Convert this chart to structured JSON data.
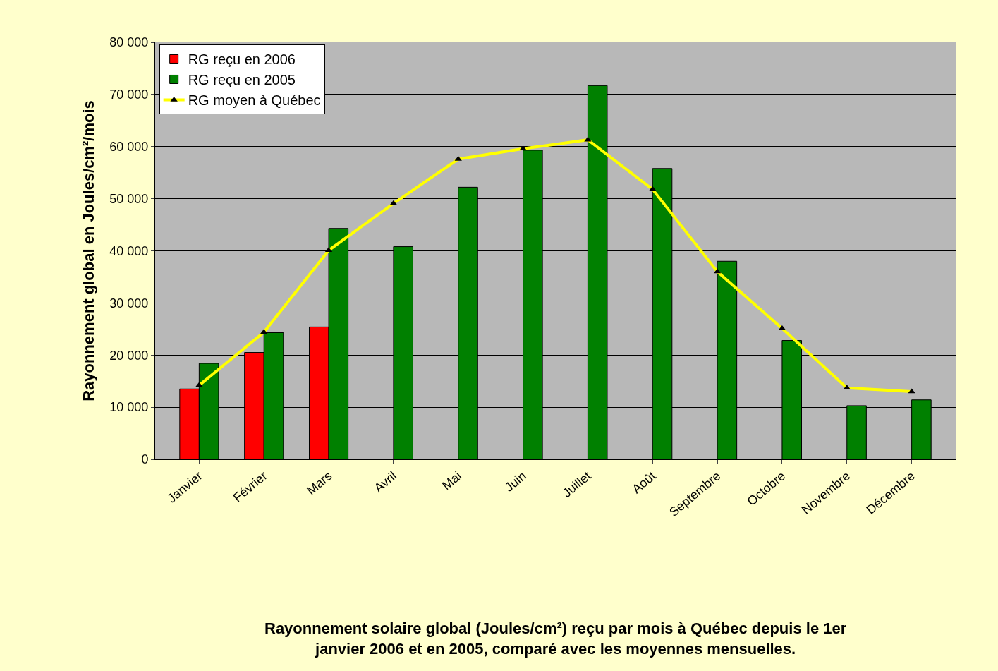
{
  "chart_data": {
    "type": "bar",
    "categories": [
      "Janvier",
      "Février",
      "Mars",
      "Avril",
      "Mai",
      "Juin",
      "Juillet",
      "Août",
      "Septembre",
      "Octobre",
      "Novembre",
      "Décembre"
    ],
    "series": [
      {
        "name": "RG reçu en 2006",
        "color": "#ff0000",
        "values": [
          13500,
          20500,
          25400,
          null,
          null,
          null,
          null,
          null,
          null,
          null,
          null,
          null
        ]
      },
      {
        "name": "RG reçu en 2005",
        "color": "#008000",
        "values": [
          18400,
          24300,
          44300,
          40800,
          52200,
          59300,
          71700,
          55800,
          38000,
          22800,
          10300,
          11400
        ]
      },
      {
        "name": "RG moyen à Québec",
        "type": "line",
        "color": "#ffff00",
        "marker": "triangle",
        "values": [
          14200,
          24400,
          40100,
          49100,
          57600,
          59600,
          61300,
          51800,
          36000,
          25100,
          13700,
          13000
        ]
      }
    ],
    "ylabel": "Rayonnement global en Joules/cm²/mois",
    "ylim": [
      0,
      80000
    ],
    "yticks": [
      {
        "value": 0,
        "label": "0"
      },
      {
        "value": 10000,
        "label": "10 000"
      },
      {
        "value": 20000,
        "label": "20 000"
      },
      {
        "value": 30000,
        "label": "30 000"
      },
      {
        "value": 40000,
        "label": "40 000"
      },
      {
        "value": 50000,
        "label": "50 000"
      },
      {
        "value": 60000,
        "label": "60 000"
      },
      {
        "value": 70000,
        "label": "70 000"
      },
      {
        "value": 80000,
        "label": "80 000"
      }
    ],
    "grid": "y",
    "legend": "top left",
    "annotations": [
      "Rayonnement solaire global (Joules/cm²) reçu par mois à Québec depuis le 1er janvier 2006 et en 2005, comparé avec les moyennes mensuelles."
    ]
  }
}
